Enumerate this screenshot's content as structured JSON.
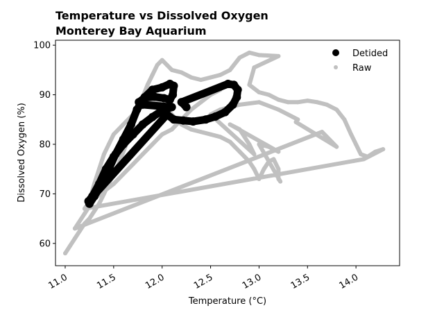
{
  "chart_data": {
    "type": "scatter",
    "title": "Temperature vs Dissolved Oxygen",
    "subtitle": "Monterey Bay Aquarium",
    "xlabel": "Temperature (°C)",
    "ylabel": "Dissolved Oxygen (%)",
    "xlim": [
      10.9,
      14.45
    ],
    "ylim": [
      55.5,
      101
    ],
    "xticks": [
      11.0,
      11.5,
      12.0,
      12.5,
      13.0,
      13.5,
      14.0
    ],
    "xtick_labels": [
      "11.0",
      "11.5",
      "12.0",
      "12.5",
      "13.0",
      "13.5",
      "14.0"
    ],
    "yticks": [
      60,
      70,
      80,
      90,
      100
    ],
    "ytick_labels": [
      "60",
      "70",
      "80",
      "90",
      "100"
    ],
    "grid": false,
    "legend_position": "top-right",
    "series": [
      {
        "name": "Detided",
        "color": "#000000",
        "marker": "large-circle",
        "points": [
          [
            11.25,
            68
          ],
          [
            11.3,
            69.5
          ],
          [
            11.38,
            72
          ],
          [
            11.45,
            75
          ],
          [
            11.52,
            78
          ],
          [
            11.6,
            81
          ],
          [
            11.68,
            84
          ],
          [
            11.74,
            87
          ],
          [
            11.82,
            89.5
          ],
          [
            11.9,
            91
          ],
          [
            12.0,
            91.5
          ],
          [
            12.08,
            92.2
          ],
          [
            12.12,
            91.8
          ],
          [
            12.11,
            90
          ],
          [
            12.08,
            89
          ],
          [
            12.02,
            89.3
          ],
          [
            11.92,
            89.6
          ],
          [
            11.82,
            89.4
          ],
          [
            11.76,
            88.5
          ],
          [
            11.8,
            88
          ],
          [
            12.1,
            87.5
          ],
          [
            12.0,
            86.8
          ],
          [
            11.9,
            85.5
          ],
          [
            11.8,
            84
          ],
          [
            11.7,
            82
          ],
          [
            11.6,
            80
          ],
          [
            11.5,
            77.5
          ],
          [
            11.42,
            75
          ],
          [
            11.35,
            72
          ],
          [
            11.28,
            69.5
          ],
          [
            11.24,
            68.5
          ],
          [
            12.05,
            86
          ],
          [
            12.12,
            85
          ],
          [
            12.22,
            84.8
          ],
          [
            12.32,
            84.6
          ],
          [
            12.45,
            85
          ],
          [
            12.55,
            85.6
          ],
          [
            12.65,
            86.5
          ],
          [
            12.73,
            88
          ],
          [
            12.77,
            89.5
          ],
          [
            12.78,
            91
          ],
          [
            12.74,
            92
          ],
          [
            12.68,
            92.2
          ],
          [
            12.2,
            88.5
          ],
          [
            12.25,
            87.5
          ]
        ]
      },
      {
        "name": "Raw",
        "color": "#c0c0c0",
        "marker": "small-dot",
        "points": [
          [
            11.0,
            58
          ],
          [
            11.05,
            59.5
          ],
          [
            11.1,
            61
          ],
          [
            11.15,
            62.5
          ],
          [
            11.2,
            64
          ],
          [
            11.25,
            65
          ],
          [
            11.3,
            66.5
          ],
          [
            11.35,
            68
          ],
          [
            11.4,
            70
          ],
          [
            11.45,
            72
          ],
          [
            11.5,
            74
          ],
          [
            11.55,
            76
          ],
          [
            11.6,
            78.5
          ],
          [
            11.65,
            81
          ],
          [
            11.7,
            84
          ],
          [
            11.75,
            87
          ],
          [
            11.8,
            89.5
          ],
          [
            11.85,
            92
          ],
          [
            11.9,
            94
          ],
          [
            11.95,
            96
          ],
          [
            12.0,
            97
          ],
          [
            12.05,
            96
          ],
          [
            12.1,
            95
          ],
          [
            12.2,
            94.5
          ],
          [
            12.3,
            93.5
          ],
          [
            12.4,
            93
          ],
          [
            12.5,
            93.5
          ],
          [
            12.6,
            94
          ],
          [
            12.7,
            95
          ],
          [
            12.8,
            97.5
          ],
          [
            12.9,
            98.5
          ],
          [
            13.0,
            98
          ],
          [
            13.2,
            97.8
          ],
          [
            12.95,
            95.5
          ],
          [
            12.9,
            92
          ],
          [
            13.0,
            90.5
          ],
          [
            13.1,
            90
          ],
          [
            13.2,
            89
          ],
          [
            13.3,
            88.5
          ],
          [
            13.4,
            88.5
          ],
          [
            13.5,
            88.8
          ],
          [
            13.6,
            88.5
          ],
          [
            13.7,
            88
          ],
          [
            13.8,
            87
          ],
          [
            13.88,
            85
          ],
          [
            13.95,
            82
          ],
          [
            14.0,
            80
          ],
          [
            14.05,
            78
          ],
          [
            14.12,
            77.5
          ],
          [
            14.2,
            78.5
          ],
          [
            14.28,
            79
          ],
          [
            14.08,
            77
          ],
          [
            11.2,
            67
          ],
          [
            11.25,
            68.5
          ],
          [
            11.3,
            72
          ],
          [
            11.35,
            75
          ],
          [
            11.4,
            78
          ],
          [
            11.45,
            80
          ],
          [
            11.5,
            82
          ],
          [
            11.6,
            84
          ],
          [
            11.7,
            86
          ],
          [
            11.8,
            88
          ],
          [
            11.9,
            89
          ],
          [
            12.0,
            88
          ],
          [
            12.1,
            86
          ],
          [
            12.2,
            84
          ],
          [
            12.3,
            83
          ],
          [
            12.4,
            82.5
          ],
          [
            12.5,
            82
          ],
          [
            12.6,
            81.5
          ],
          [
            12.7,
            80.5
          ],
          [
            12.75,
            79.5
          ],
          [
            12.8,
            78.5
          ],
          [
            12.85,
            77.5
          ],
          [
            12.9,
            76.5
          ],
          [
            12.95,
            75
          ],
          [
            13.0,
            73
          ],
          [
            13.05,
            75
          ],
          [
            13.1,
            76.5
          ],
          [
            13.15,
            77
          ],
          [
            13.2,
            75
          ],
          [
            13.2,
            73
          ],
          [
            13.22,
            72.5
          ],
          [
            13.0,
            80
          ],
          [
            13.1,
            79.5
          ],
          [
            13.2,
            78.5
          ],
          [
            12.7,
            84
          ],
          [
            12.8,
            83
          ],
          [
            12.9,
            80
          ],
          [
            12.95,
            78
          ],
          [
            12.5,
            86
          ],
          [
            12.6,
            87
          ],
          [
            12.8,
            88
          ],
          [
            13.0,
            88.5
          ],
          [
            13.2,
            87
          ],
          [
            13.3,
            86
          ],
          [
            13.4,
            85
          ],
          [
            13.38,
            84.5
          ],
          [
            13.8,
            79.5
          ],
          [
            13.65,
            82.5
          ],
          [
            11.1,
            63
          ],
          [
            11.2,
            66
          ],
          [
            11.3,
            69
          ],
          [
            11.5,
            72
          ],
          [
            11.6,
            74
          ],
          [
            11.7,
            76
          ],
          [
            11.8,
            78
          ],
          [
            11.9,
            80
          ],
          [
            12.0,
            82
          ],
          [
            12.1,
            83
          ],
          [
            12.2,
            85
          ],
          [
            12.3,
            87
          ],
          [
            12.4,
            88.5
          ],
          [
            12.5,
            90
          ],
          [
            12.6,
            91
          ]
        ]
      }
    ]
  }
}
